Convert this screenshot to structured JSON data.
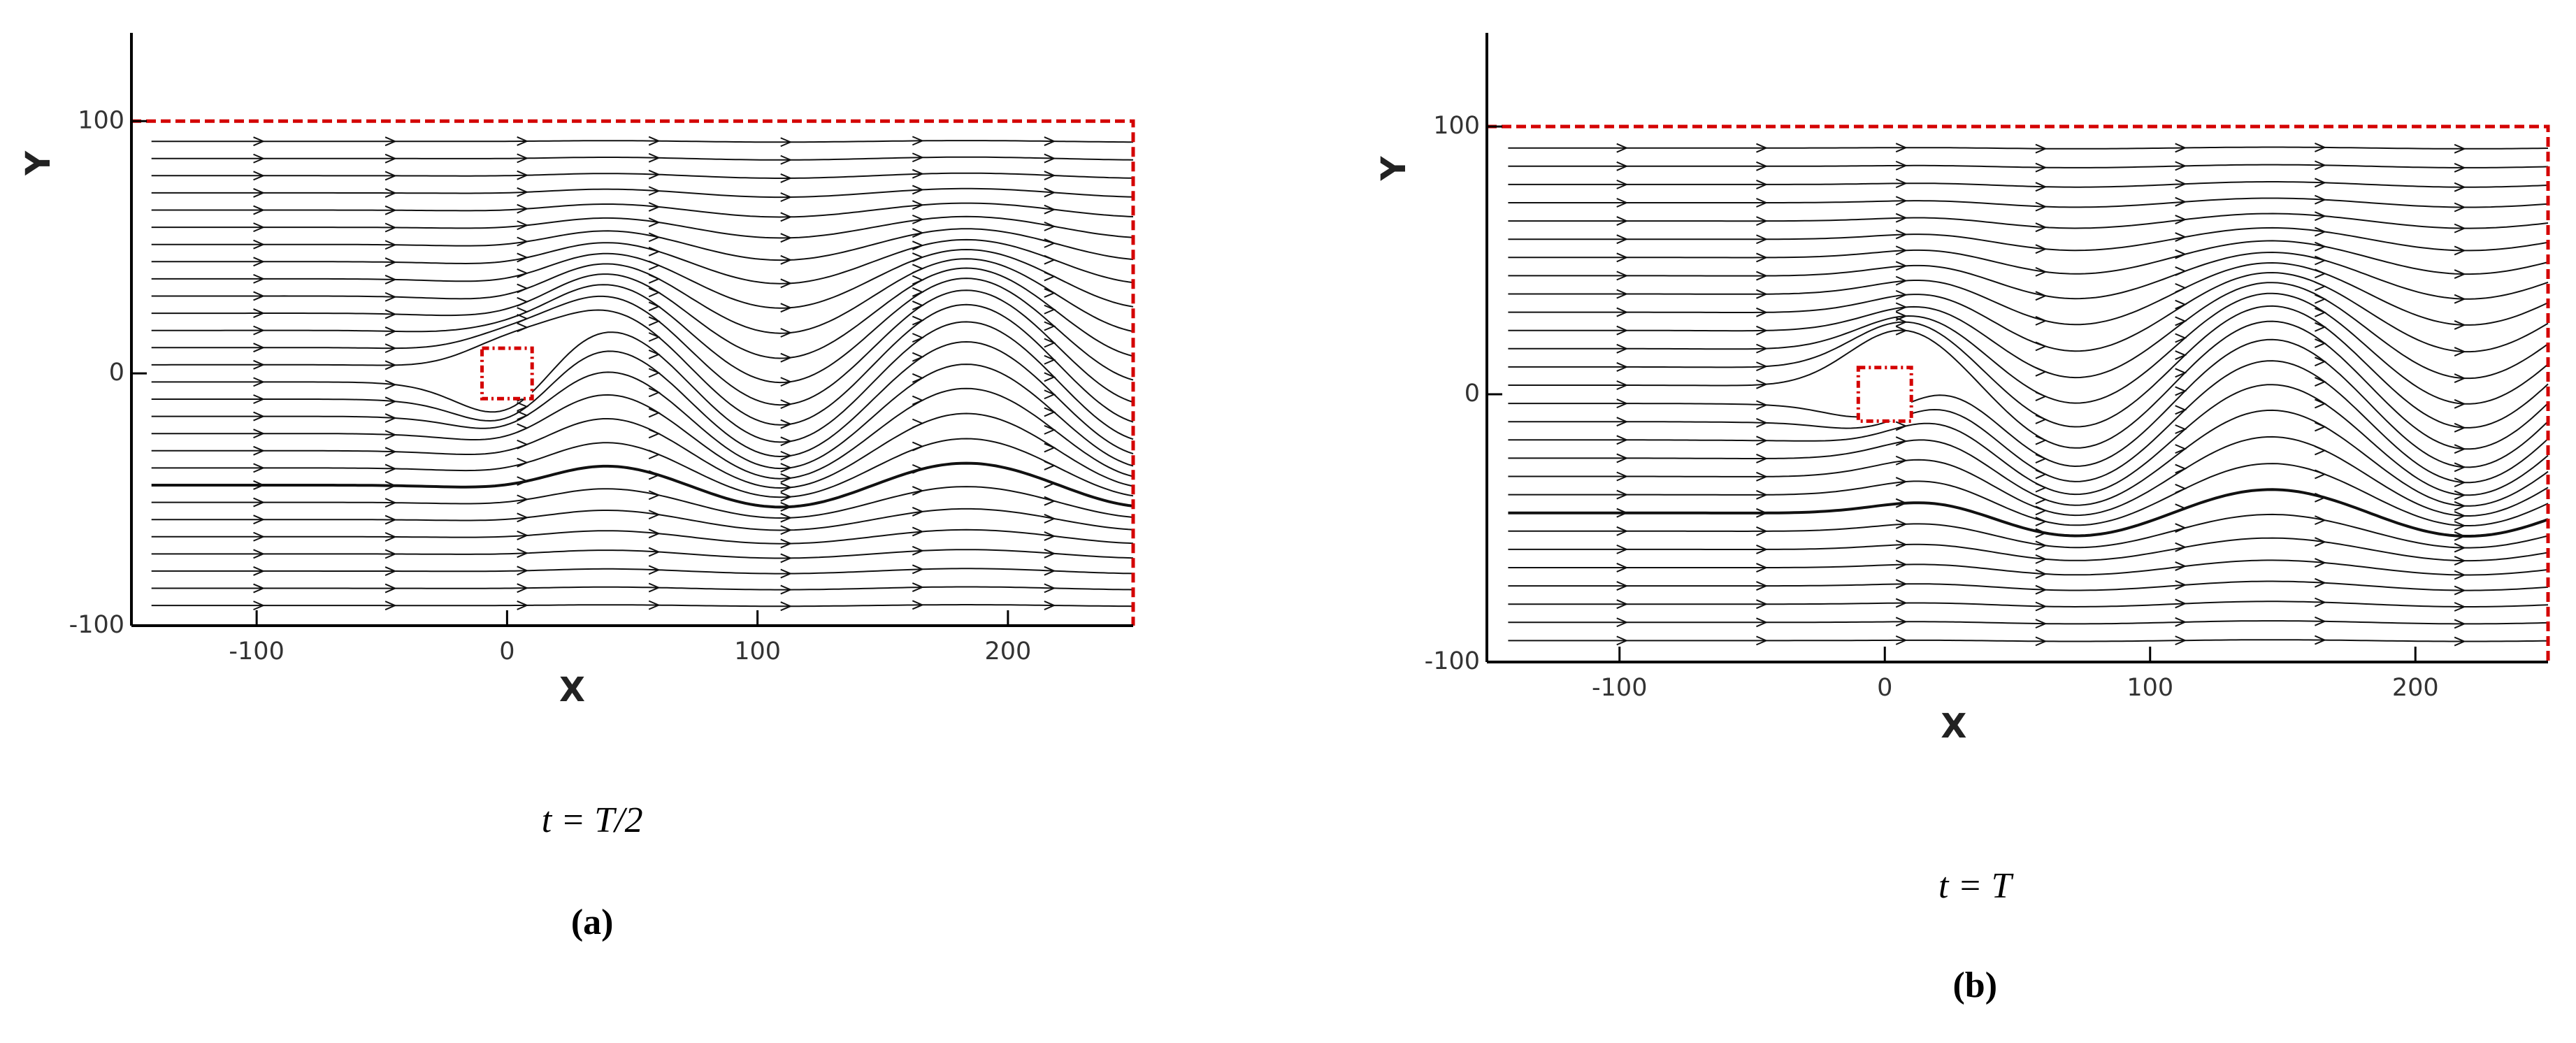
{
  "chart_data": [
    {
      "type": "streamline",
      "xlabel": "X",
      "ylabel": "Y",
      "caption": "t = T/2",
      "label": "(a)",
      "xlim": [
        -150,
        250
      ],
      "ylim": [
        -100,
        135
      ],
      "xticks": [
        -100,
        0,
        100,
        200
      ],
      "yticks": [
        -100,
        0,
        100
      ],
      "obstacle": {
        "x": [
          -10,
          10
        ],
        "y": [
          -10,
          10
        ]
      },
      "boundary_color": "#d40000"
    },
    {
      "type": "streamline",
      "xlabel": "X",
      "ylabel": "Y",
      "caption": "t = T",
      "label": "(b)",
      "xlim": [
        -150,
        250
      ],
      "ylim": [
        -100,
        135
      ],
      "xticks": [
        -100,
        0,
        100,
        200
      ],
      "yticks": [
        -100,
        0,
        100
      ],
      "obstacle": {
        "x": [
          -10,
          10
        ],
        "y": [
          -10,
          10
        ]
      },
      "boundary_color": "#d40000"
    }
  ]
}
